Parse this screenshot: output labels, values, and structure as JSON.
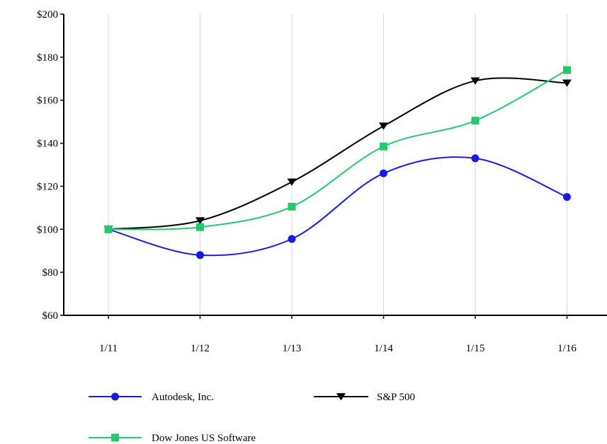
{
  "chart_data": {
    "type": "line",
    "title": "",
    "xlabel": "",
    "ylabel": "",
    "categories": [
      "1/11",
      "1/12",
      "1/13",
      "1/14",
      "1/15",
      "1/16"
    ],
    "ylim": [
      60,
      200
    ],
    "y_ticks": [
      60,
      80,
      100,
      120,
      140,
      160,
      180,
      200
    ],
    "y_tick_labels": [
      "$60",
      "$80",
      "$100",
      "$120",
      "$140",
      "$160",
      "$180",
      "$200"
    ],
    "grid": "vertical",
    "legend_position": "bottom",
    "series": [
      {
        "name": "Autodesk, Inc.",
        "values": [
          100,
          88,
          95.5,
          126,
          133,
          115
        ],
        "color": "#1a1adc",
        "marker": "circle"
      },
      {
        "name": "S&P 500",
        "values": [
          100,
          104,
          122,
          148,
          169,
          168
        ],
        "color": "#000000",
        "marker": "triangle-down"
      },
      {
        "name": "Dow Jones US Software",
        "values": [
          100,
          101,
          110.5,
          138.5,
          150.5,
          174
        ],
        "color": "#22c96e",
        "marker": "square"
      }
    ]
  }
}
